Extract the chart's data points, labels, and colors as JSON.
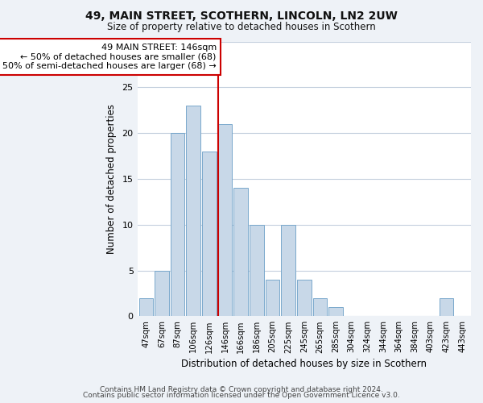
{
  "title": "49, MAIN STREET, SCOTHERN, LINCOLN, LN2 2UW",
  "subtitle": "Size of property relative to detached houses in Scothern",
  "xlabel": "Distribution of detached houses by size in Scothern",
  "ylabel": "Number of detached properties",
  "footer_line1": "Contains HM Land Registry data © Crown copyright and database right 2024.",
  "footer_line2": "Contains public sector information licensed under the Open Government Licence v3.0.",
  "bar_labels": [
    "47sqm",
    "67sqm",
    "87sqm",
    "106sqm",
    "126sqm",
    "146sqm",
    "166sqm",
    "186sqm",
    "205sqm",
    "225sqm",
    "245sqm",
    "265sqm",
    "285sqm",
    "304sqm",
    "324sqm",
    "344sqm",
    "364sqm",
    "384sqm",
    "403sqm",
    "423sqm",
    "443sqm"
  ],
  "bar_heights": [
    2,
    5,
    20,
    23,
    18,
    21,
    14,
    10,
    4,
    10,
    4,
    2,
    1,
    0,
    0,
    0,
    0,
    0,
    0,
    2,
    0
  ],
  "highlight_index": 5,
  "bar_color": "#c8d8e8",
  "bar_edge_color": "#7aa8cc",
  "highlight_line_color": "#cc0000",
  "annotation_line1": "49 MAIN STREET: 146sqm",
  "annotation_line2": "← 50% of detached houses are smaller (68)",
  "annotation_line3": "50% of semi-detached houses are larger (68) →",
  "annotation_box_color": "#ffffff",
  "annotation_box_edge": "#cc0000",
  "ylim": [
    0,
    30
  ],
  "bg_color": "#eef2f7",
  "plot_bg_color": "#ffffff",
  "grid_color": "#c5d0de"
}
